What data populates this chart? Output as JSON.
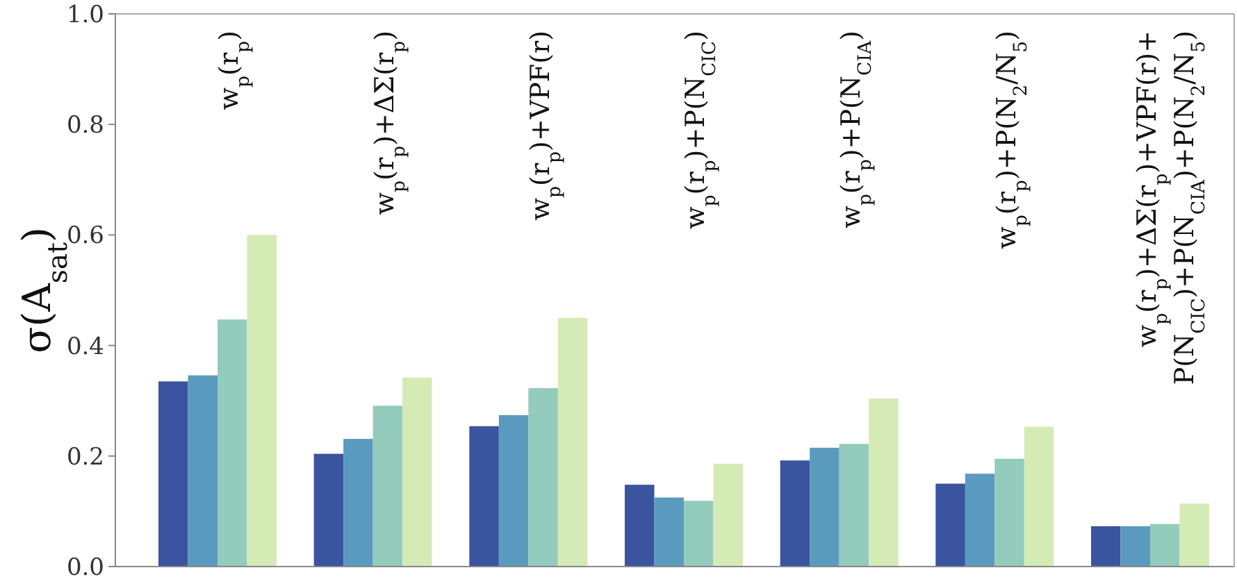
{
  "chart_data": {
    "type": "bar",
    "ylabel": "σ(A$_{sat}$)",
    "categories": [
      "w$_{p}$(r$_{p}$)",
      "w$_{p}$(r$_{p}$)+ΔΣ(r$_{p}$)",
      "w$_{p}$(r$_{p}$)+VPF(r)",
      "w$_{p}$(r$_{p}$)+P(N$_{CIC}$)",
      "w$_{p}$(r$_{p}$)+P(N$_{CIA}$)",
      "w$_{p}$(r$_{p}$)+P(N$_{2}$/N$_{5}$)",
      "w$_{p}$(r$_{p}$)+ΔΣ(r$_{p}$)+VPF(r)+\nP(N$_{CIC}$)+P(N$_{CIA}$)+P(N$_{2}$/N$_{5}$)"
    ],
    "series": [
      {
        "color": "#3a54a0",
        "values": [
          0.335,
          0.204,
          0.254,
          0.148,
          0.192,
          0.15,
          0.073
        ]
      },
      {
        "color": "#5b9abf",
        "values": [
          0.346,
          0.231,
          0.274,
          0.125,
          0.215,
          0.168,
          0.073
        ]
      },
      {
        "color": "#93cbbd",
        "values": [
          0.447,
          0.291,
          0.323,
          0.119,
          0.222,
          0.195,
          0.077
        ]
      },
      {
        "color": "#d4ebb6",
        "values": [
          0.6,
          0.342,
          0.45,
          0.186,
          0.304,
          0.253,
          0.114
        ]
      }
    ],
    "ylim": [
      0,
      1
    ],
    "yticks": [
      {
        "value": 0,
        "label": "0.0"
      },
      {
        "value": 0.2,
        "label": "0.2"
      },
      {
        "value": 0.4,
        "label": "0.4"
      },
      {
        "value": 0.6,
        "label": "0.6"
      },
      {
        "value": 0.8,
        "label": "0.8"
      },
      {
        "value": 1,
        "label": "1.0"
      }
    ],
    "grid": false
  }
}
